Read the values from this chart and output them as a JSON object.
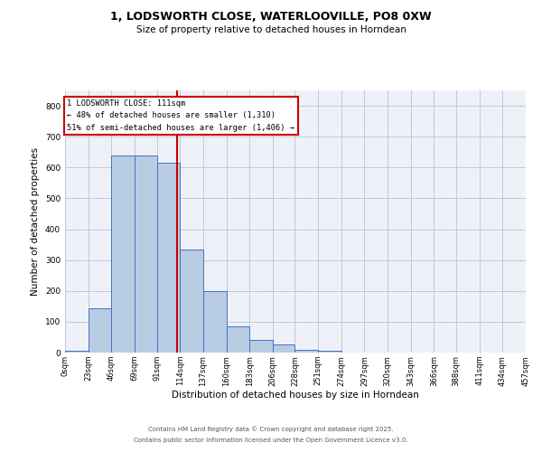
{
  "title_line1": "1, LODSWORTH CLOSE, WATERLOOVILLE, PO8 0XW",
  "title_line2": "Size of property relative to detached houses in Horndean",
  "xlabel": "Distribution of detached houses by size in Horndean",
  "ylabel": "Number of detached properties",
  "bar_edges": [
    0,
    23,
    46,
    69,
    91,
    114,
    137,
    160,
    183,
    206,
    228,
    251,
    274,
    297,
    320,
    343,
    366,
    388,
    411,
    434,
    457
  ],
  "bar_heights": [
    5,
    145,
    640,
    638,
    615,
    335,
    198,
    85,
    42,
    27,
    10,
    7,
    0,
    0,
    0,
    0,
    0,
    0,
    0,
    0
  ],
  "bar_color": "#b8cce4",
  "bar_edge_color": "#4472c4",
  "property_line_x": 111,
  "property_line_color": "#cc0000",
  "annotation_line1": "1 LODSWORTH CLOSE: 111sqm",
  "annotation_line2": "← 48% of detached houses are smaller (1,310)",
  "annotation_line3": "51% of semi-detached houses are larger (1,406) →",
  "annotation_box_color": "#cc0000",
  "ylim": [
    0,
    850
  ],
  "yticks": [
    0,
    100,
    200,
    300,
    400,
    500,
    600,
    700,
    800
  ],
  "grid_color": "#c0c8d8",
  "bg_color": "#eef2f8",
  "footnote1": "Contains HM Land Registry data © Crown copyright and database right 2025.",
  "footnote2": "Contains public sector information licensed under the Open Government Licence v3.0.",
  "tick_labels": [
    "0sqm",
    "23sqm",
    "46sqm",
    "69sqm",
    "91sqm",
    "114sqm",
    "137sqm",
    "160sqm",
    "183sqm",
    "206sqm",
    "228sqm",
    "251sqm",
    "274sqm",
    "297sqm",
    "320sqm",
    "343sqm",
    "366sqm",
    "388sqm",
    "411sqm",
    "434sqm",
    "457sqm"
  ]
}
